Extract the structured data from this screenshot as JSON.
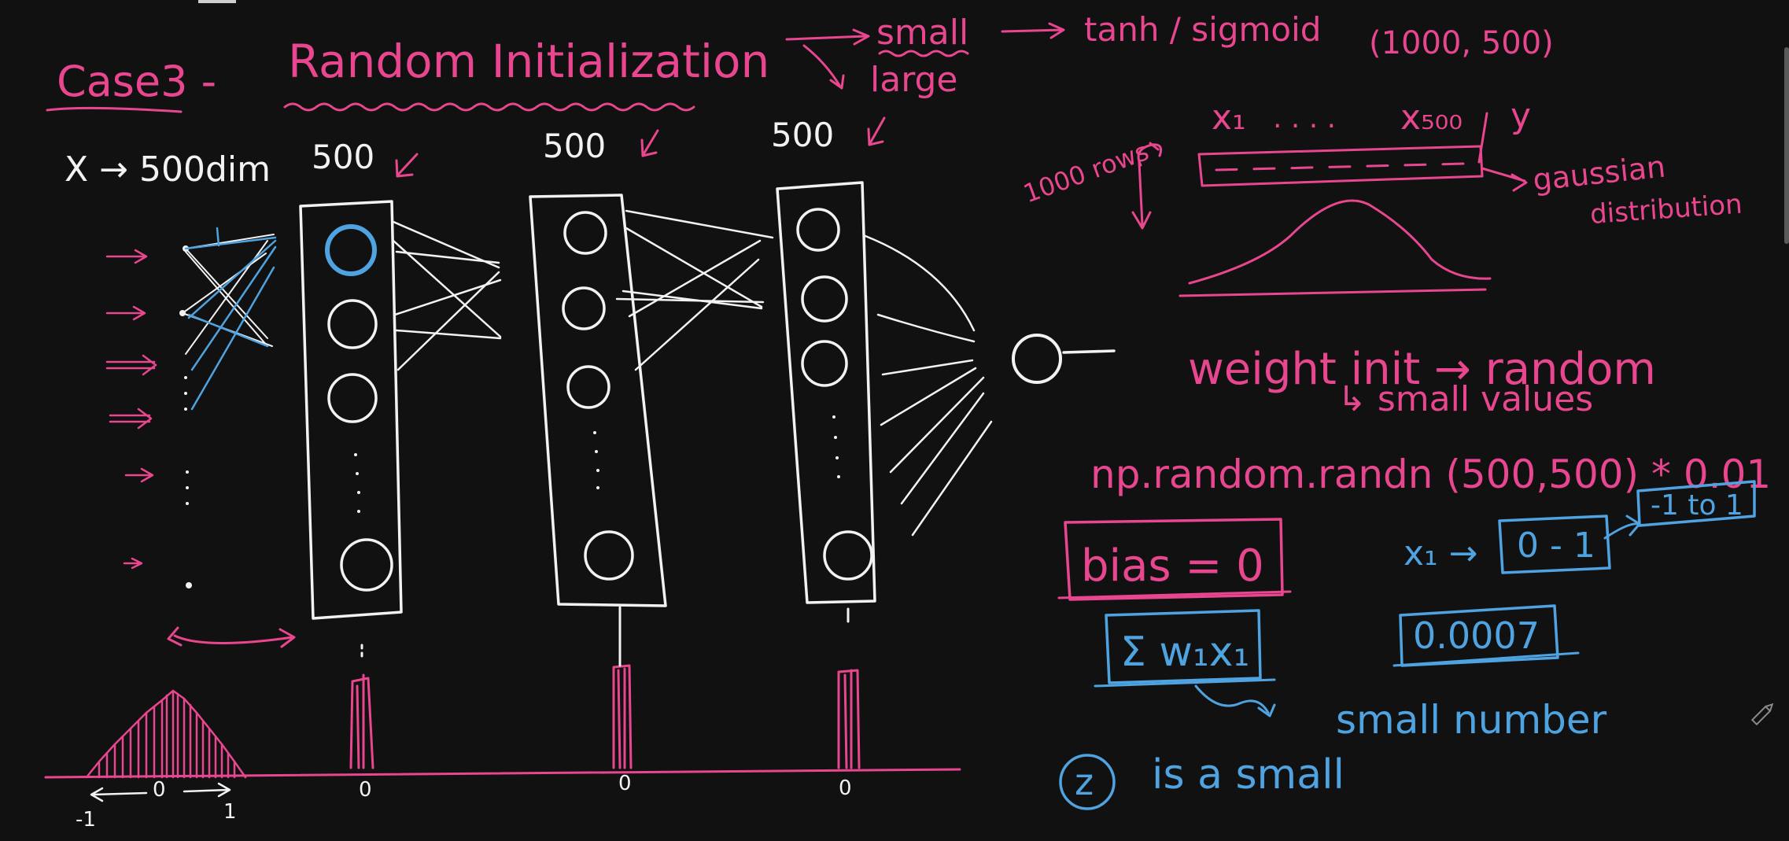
{
  "title": {
    "case": "Case3 -",
    "topic": "Random Initialization",
    "small": "small",
    "large": "large",
    "activation": "tanh / sigmoid",
    "shape": "(1000, 500)"
  },
  "network": {
    "input_label": "X → 500dim",
    "layer1_label": "500",
    "layer2_label": "500",
    "layer3_label": "500"
  },
  "dataset": {
    "rows_label": "1000 rows",
    "x_first": "x₁",
    "dots": ". . . .",
    "x_last": "x₅₀₀",
    "y_label": "y",
    "dist_label_1": "gaussian",
    "dist_label_2": "distribution"
  },
  "notes": {
    "weight_init": "weight init → random",
    "small_values": "↳ small values",
    "code": "np.random.randn (500,500) * 0.01",
    "bias": "bias = 0",
    "x1": "x₁ →",
    "range_01": "0 - 1",
    "range_pm1": "-1 to 1",
    "sum": "Σ w₁x₁",
    "value": "0.0007",
    "small_number": "small number",
    "z_symbol": "z",
    "z_text": "is a small"
  },
  "axis": {
    "input_ticks": [
      "-1",
      "0",
      "1"
    ],
    "layer_ticks": [
      "0",
      "0",
      "0"
    ]
  },
  "colors": {
    "background": "#111111",
    "pink": "#e8468e",
    "white": "#f2f2f2",
    "blue": "#4ea3e0"
  }
}
